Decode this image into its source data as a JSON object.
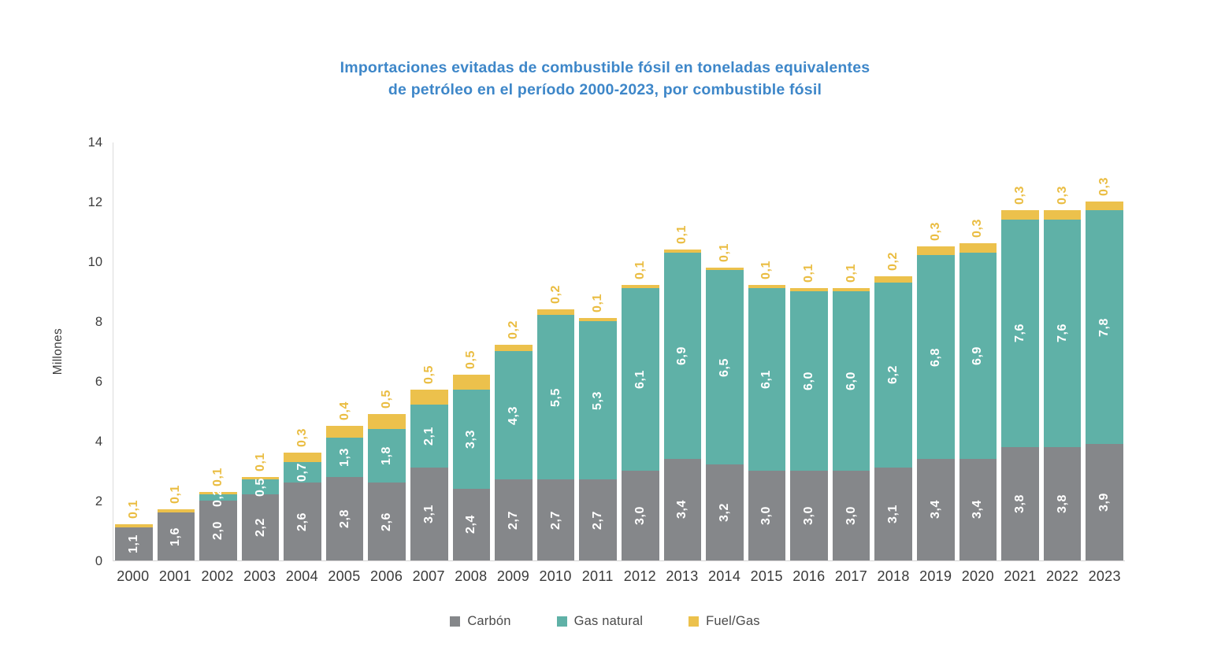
{
  "title": {
    "line1": "Importaciones evitadas de combustible fósil en toneladas equivalentes",
    "line2": "de petróleo en el período 2000-2023, por combustible fósil"
  },
  "colors": {
    "title_blue": "#3e87c9",
    "carbon_gray": "#85878a",
    "gas_teal": "#5fb1a7",
    "fuel_yellow": "#ecc14c",
    "axis_text": "#3c3c3c",
    "axis_line": "#d4d4d4",
    "segment_label_white": "#ffffff"
  },
  "chart_data": {
    "type": "bar",
    "stacked": true,
    "title": "Importaciones evitadas de combustible fósil en toneladas equivalentes de petróleo en el período 2000-2023, por combustible fósil",
    "xlabel": "",
    "ylabel": "Millones",
    "ylim": [
      0,
      14
    ],
    "yticks": [
      0,
      2,
      4,
      6,
      8,
      10,
      12,
      14
    ],
    "grid": false,
    "legend_position": "bottom",
    "categories": [
      "2000",
      "2001",
      "2002",
      "2003",
      "2004",
      "2005",
      "2006",
      "2007",
      "2008",
      "2009",
      "2010",
      "2011",
      "2012",
      "2013",
      "2014",
      "2015",
      "2016",
      "2017",
      "2018",
      "2019",
      "2020",
      "2021",
      "2022",
      "2023"
    ],
    "series": [
      {
        "name": "Carbón",
        "color": "#85878a",
        "label_style": "inside-white",
        "values": [
          1.1,
          1.6,
          2.0,
          2.2,
          2.6,
          2.8,
          2.6,
          3.1,
          2.4,
          2.7,
          2.7,
          2.7,
          3.0,
          3.4,
          3.2,
          3.0,
          3.0,
          3.0,
          3.1,
          3.4,
          3.4,
          3.8,
          3.8,
          3.9
        ],
        "labels": [
          "1,1",
          "1,6",
          "2,0",
          "2,2",
          "2,6",
          "2,8",
          "2,6",
          "3,1",
          "2,4",
          "2,7",
          "2,7",
          "2,7",
          "3,0",
          "3,4",
          "3,2",
          "3,0",
          "3,0",
          "3,0",
          "3,1",
          "3,4",
          "3,4",
          "3,8",
          "3,8",
          "3,9"
        ]
      },
      {
        "name": "Gas natural",
        "color": "#5fb1a7",
        "label_style": "inside-white",
        "values": [
          0,
          0,
          0.2,
          0.5,
          0.7,
          1.3,
          1.8,
          2.1,
          3.3,
          4.3,
          5.5,
          5.3,
          6.1,
          6.9,
          6.5,
          6.1,
          6.0,
          6.0,
          6.2,
          6.8,
          6.9,
          7.6,
          7.6,
          7.8
        ],
        "labels": [
          "",
          "",
          "0,2",
          "0,5",
          "0,7",
          "1,3",
          "1,8",
          "2,1",
          "3,3",
          "4,3",
          "5,5",
          "5,3",
          "6,1",
          "6,9",
          "6,5",
          "6,1",
          "6,0",
          "6,0",
          "6,2",
          "6,8",
          "6,9",
          "7,6",
          "7,6",
          "7,8"
        ]
      },
      {
        "name": "Fuel/Gas",
        "color": "#ecc14c",
        "label_style": "above-yellow",
        "label_color": "#eabd42",
        "values": [
          0.1,
          0.1,
          0.1,
          0.1,
          0.3,
          0.4,
          0.5,
          0.5,
          0.5,
          0.2,
          0.2,
          0.1,
          0.1,
          0.1,
          0.1,
          0.1,
          0.1,
          0.1,
          0.2,
          0.3,
          0.3,
          0.3,
          0.3,
          0.3
        ],
        "labels": [
          "0,1",
          "0,1",
          "0,1",
          "0,1",
          "0,3",
          "0,4",
          "0,5",
          "0,5",
          "0,5",
          "0,2",
          "0,2",
          "0,1",
          "0,1",
          "0,1",
          "0,1",
          "0,1",
          "0,1",
          "0,1",
          "0,2",
          "0,3",
          "0,3",
          "0,3",
          "0,3",
          "0,3"
        ]
      }
    ]
  }
}
